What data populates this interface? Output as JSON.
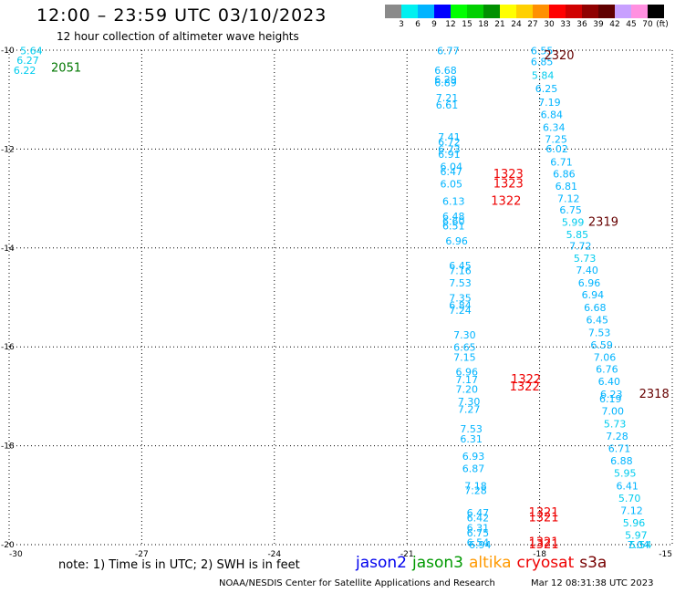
{
  "header": {
    "title": "12:00 – 23:59 UTC 03/10/2023",
    "subtitle": "12 hour collection of altimeter wave heights"
  },
  "color_scale": {
    "labels": [
      "3",
      "6",
      "9",
      "12",
      "15",
      "18",
      "21",
      "24",
      "27",
      "30",
      "33",
      "36",
      "39",
      "42",
      "45",
      "70"
    ],
    "unit": "(ft)",
    "colors": [
      "#8a8a8a",
      "#00f0f0",
      "#00b4ff",
      "#0000ff",
      "#00ff00",
      "#00d000",
      "#009000",
      "#ffff00",
      "#ffd000",
      "#ff9000",
      "#ff0000",
      "#d00000",
      "#900000",
      "#600000",
      "#c8a0ff",
      "#ff90e0",
      "#000000"
    ]
  },
  "map": {
    "x_ticks": [
      -30,
      -27,
      -24,
      -21,
      -18,
      -15
    ],
    "y_ticks": [
      -10,
      -12,
      -14,
      -16,
      -18,
      -20
    ],
    "xlim": [
      -30,
      -15
    ],
    "ylim": [
      -20,
      -10
    ],
    "grid": true
  },
  "chart_data": {
    "type": "scatter",
    "points": [
      {
        "x": -29.75,
        "y": -10.08,
        "text": "5.64",
        "color": "#00ccee"
      },
      {
        "x": -29.83,
        "y": -10.28,
        "text": "6.27",
        "color": "#00ccee"
      },
      {
        "x": -29.9,
        "y": -10.48,
        "text": "6.22",
        "color": "#00ccee"
      },
      {
        "x": -20.32,
        "y": -10.08,
        "text": "6.77",
        "color": "#00b4ff"
      },
      {
        "x": -18.2,
        "y": -10.08,
        "text": "6.55",
        "color": "#00b4ff"
      },
      {
        "x": -18.2,
        "y": -10.3,
        "text": "6.85",
        "color": "#00b4ff"
      },
      {
        "x": -18.18,
        "y": -10.58,
        "text": "5.84",
        "color": "#00ccee"
      },
      {
        "x": -18.1,
        "y": -10.85,
        "text": "6.25",
        "color": "#00b4ff"
      },
      {
        "x": -18.03,
        "y": -11.13,
        "text": "7.19",
        "color": "#00b4ff"
      },
      {
        "x": -17.98,
        "y": -11.37,
        "text": "6.84",
        "color": "#00b4ff"
      },
      {
        "x": -17.93,
        "y": -11.63,
        "text": "6.34",
        "color": "#00b4ff"
      },
      {
        "x": -17.88,
        "y": -11.87,
        "text": "7.25",
        "color": "#00b4ff"
      },
      {
        "x": -17.86,
        "y": -12.07,
        "text": "6.02",
        "color": "#00b4ff"
      },
      {
        "x": -17.76,
        "y": -12.33,
        "text": "6.71",
        "color": "#00b4ff"
      },
      {
        "x": -17.7,
        "y": -12.57,
        "text": "6.86",
        "color": "#00b4ff"
      },
      {
        "x": -17.65,
        "y": -12.82,
        "text": "6.81",
        "color": "#00b4ff"
      },
      {
        "x": -17.6,
        "y": -13.07,
        "text": "7.12",
        "color": "#00b4ff"
      },
      {
        "x": -17.55,
        "y": -13.3,
        "text": "6.75",
        "color": "#00b4ff"
      },
      {
        "x": -17.5,
        "y": -13.55,
        "text": "5.99",
        "color": "#00ccee"
      },
      {
        "x": -17.4,
        "y": -13.8,
        "text": "5.85",
        "color": "#00ccee"
      },
      {
        "x": -17.33,
        "y": -14.03,
        "text": "7.72",
        "color": "#00b4ff"
      },
      {
        "x": -17.23,
        "y": -14.28,
        "text": "5.73",
        "color": "#00ccee"
      },
      {
        "x": -17.18,
        "y": -14.52,
        "text": "7.40",
        "color": "#00b4ff"
      },
      {
        "x": -17.13,
        "y": -14.78,
        "text": "6.96",
        "color": "#00b4ff"
      },
      {
        "x": -17.05,
        "y": -15.02,
        "text": "6.94",
        "color": "#00b4ff"
      },
      {
        "x": -17.0,
        "y": -15.28,
        "text": "6.68",
        "color": "#00b4ff"
      },
      {
        "x": -16.95,
        "y": -15.53,
        "text": "6.45",
        "color": "#00b4ff"
      },
      {
        "x": -16.9,
        "y": -15.78,
        "text": "7.53",
        "color": "#00b4ff"
      },
      {
        "x": -16.85,
        "y": -16.03,
        "text": "6.59",
        "color": "#00b4ff"
      },
      {
        "x": -16.78,
        "y": -16.28,
        "text": "7.06",
        "color": "#00b4ff"
      },
      {
        "x": -16.73,
        "y": -16.52,
        "text": "6.76",
        "color": "#00b4ff"
      },
      {
        "x": -16.68,
        "y": -16.77,
        "text": "6.40",
        "color": "#00b4ff"
      },
      {
        "x": -16.63,
        "y": -17.03,
        "text": "6.23",
        "color": "#00b4ff"
      },
      {
        "x": -16.65,
        "y": -17.12,
        "text": "6.19",
        "color": "#00b4ff"
      },
      {
        "x": -16.6,
        "y": -17.37,
        "text": "7.00",
        "color": "#00b4ff"
      },
      {
        "x": -16.55,
        "y": -17.63,
        "text": "5.73",
        "color": "#00ccee"
      },
      {
        "x": -16.5,
        "y": -17.88,
        "text": "7.28",
        "color": "#00b4ff"
      },
      {
        "x": -16.45,
        "y": -18.13,
        "text": "6.71",
        "color": "#00b4ff"
      },
      {
        "x": -16.4,
        "y": -18.38,
        "text": "6.88",
        "color": "#00b4ff"
      },
      {
        "x": -16.32,
        "y": -18.63,
        "text": "5.95",
        "color": "#00ccee"
      },
      {
        "x": -16.27,
        "y": -18.88,
        "text": "6.41",
        "color": "#00b4ff"
      },
      {
        "x": -16.22,
        "y": -19.13,
        "text": "5.70",
        "color": "#00ccee"
      },
      {
        "x": -16.17,
        "y": -19.38,
        "text": "7.12",
        "color": "#00b4ff"
      },
      {
        "x": -16.12,
        "y": -19.63,
        "text": "5.96",
        "color": "#00ccee"
      },
      {
        "x": -16.07,
        "y": -19.88,
        "text": "5.97",
        "color": "#00ccee"
      },
      {
        "x": -16.02,
        "y": -20.13,
        "text": "7.04",
        "color": "#00b4ff"
      },
      {
        "x": -15.97,
        "y": -20.38,
        "text": "5.54",
        "color": "#00ccee"
      },
      {
        "x": -20.38,
        "y": -10.48,
        "text": "6.68",
        "color": "#00b4ff"
      },
      {
        "x": -20.38,
        "y": -10.66,
        "text": "6.29",
        "color": "#00b4ff"
      },
      {
        "x": -20.38,
        "y": -10.73,
        "text": "6.89",
        "color": "#00b4ff"
      },
      {
        "x": -20.35,
        "y": -11.03,
        "text": "7.21",
        "color": "#00b4ff"
      },
      {
        "x": -20.35,
        "y": -11.18,
        "text": "6.61",
        "color": "#00b4ff"
      },
      {
        "x": -20.3,
        "y": -11.83,
        "text": "7.41",
        "color": "#00b4ff"
      },
      {
        "x": -20.3,
        "y": -11.93,
        "text": "6.72",
        "color": "#00b4ff"
      },
      {
        "x": -20.3,
        "y": -12.08,
        "text": "6.73",
        "color": "#00b4ff"
      },
      {
        "x": -20.3,
        "y": -12.18,
        "text": "6.91",
        "color": "#00b4ff"
      },
      {
        "x": -20.25,
        "y": -12.43,
        "text": "6.04",
        "color": "#00b4ff"
      },
      {
        "x": -20.25,
        "y": -12.53,
        "text": "6.47",
        "color": "#00b4ff"
      },
      {
        "x": -20.25,
        "y": -12.78,
        "text": "6.05",
        "color": "#00b4ff"
      },
      {
        "x": -20.2,
        "y": -13.13,
        "text": "6.13",
        "color": "#00b4ff"
      },
      {
        "x": -20.2,
        "y": -13.43,
        "text": "6.48",
        "color": "#00b4ff"
      },
      {
        "x": -20.2,
        "y": -13.53,
        "text": "6.60",
        "color": "#00b4ff"
      },
      {
        "x": -20.2,
        "y": -13.63,
        "text": "6.51",
        "color": "#00b4ff"
      },
      {
        "x": -20.13,
        "y": -13.93,
        "text": "6.96",
        "color": "#00b4ff"
      },
      {
        "x": -20.05,
        "y": -14.43,
        "text": "6.45",
        "color": "#00b4ff"
      },
      {
        "x": -20.05,
        "y": -14.53,
        "text": "7.16",
        "color": "#00b4ff"
      },
      {
        "x": -20.05,
        "y": -14.78,
        "text": "7.53",
        "color": "#00b4ff"
      },
      {
        "x": -20.05,
        "y": -15.08,
        "text": "7.35",
        "color": "#00b4ff"
      },
      {
        "x": -20.05,
        "y": -15.23,
        "text": "6.84",
        "color": "#00b4ff"
      },
      {
        "x": -20.05,
        "y": -15.33,
        "text": "7.24",
        "color": "#00b4ff"
      },
      {
        "x": -19.95,
        "y": -15.83,
        "text": "7.30",
        "color": "#00b4ff"
      },
      {
        "x": -19.95,
        "y": -16.08,
        "text": "6.65",
        "color": "#00b4ff"
      },
      {
        "x": -19.95,
        "y": -16.28,
        "text": "7.15",
        "color": "#00b4ff"
      },
      {
        "x": -19.9,
        "y": -16.58,
        "text": "6.96",
        "color": "#00b4ff"
      },
      {
        "x": -19.9,
        "y": -16.73,
        "text": "7.17",
        "color": "#00b4ff"
      },
      {
        "x": -19.9,
        "y": -16.93,
        "text": "7.20",
        "color": "#00b4ff"
      },
      {
        "x": -19.85,
        "y": -17.18,
        "text": "7.30",
        "color": "#00b4ff"
      },
      {
        "x": -19.85,
        "y": -17.33,
        "text": "7.27",
        "color": "#00b4ff"
      },
      {
        "x": -19.8,
        "y": -17.73,
        "text": "7.53",
        "color": "#00b4ff"
      },
      {
        "x": -19.8,
        "y": -17.93,
        "text": "6.31",
        "color": "#00b4ff"
      },
      {
        "x": -19.75,
        "y": -18.28,
        "text": "6.93",
        "color": "#00b4ff"
      },
      {
        "x": -19.75,
        "y": -18.53,
        "text": "6.87",
        "color": "#00b4ff"
      },
      {
        "x": -19.7,
        "y": -18.88,
        "text": "7.18",
        "color": "#00b4ff"
      },
      {
        "x": -19.7,
        "y": -18.98,
        "text": "7.28",
        "color": "#00b4ff"
      },
      {
        "x": -19.65,
        "y": -19.43,
        "text": "6.47",
        "color": "#00b4ff"
      },
      {
        "x": -19.65,
        "y": -19.53,
        "text": "6.42",
        "color": "#00b4ff"
      },
      {
        "x": -19.65,
        "y": -19.73,
        "text": "6.31",
        "color": "#00b4ff"
      },
      {
        "x": -19.65,
        "y": -19.83,
        "text": "6.75",
        "color": "#00b4ff"
      },
      {
        "x": -19.65,
        "y": -20.03,
        "text": "6.54",
        "color": "#00b4ff"
      },
      {
        "x": -19.6,
        "y": -20.43,
        "text": "6.94",
        "color": "#00b4ff"
      }
    ],
    "pass_labels": [
      {
        "x": -29.05,
        "y": -10.43,
        "text": "2051",
        "color": "#007700"
      },
      {
        "x": -17.9,
        "y": -10.18,
        "text": "2320",
        "color": "#660000"
      },
      {
        "x": -16.9,
        "y": -13.55,
        "text": "2319",
        "color": "#660000"
      },
      {
        "x": -15.75,
        "y": -17.03,
        "text": "2318",
        "color": "#660000"
      },
      {
        "x": -19.05,
        "y": -12.58,
        "text": "1323",
        "color": "#ee0000"
      },
      {
        "x": -19.05,
        "y": -12.78,
        "text": "1323",
        "color": "#ee0000"
      },
      {
        "x": -19.1,
        "y": -13.13,
        "text": "1322",
        "color": "#ee0000"
      },
      {
        "x": -18.65,
        "y": -16.73,
        "text": "1322",
        "color": "#ee0000"
      },
      {
        "x": -18.68,
        "y": -16.88,
        "text": "1322",
        "color": "#ee0000"
      },
      {
        "x": -18.25,
        "y": -19.43,
        "text": "1321",
        "color": "#ee0000"
      },
      {
        "x": -18.25,
        "y": -19.53,
        "text": "1321",
        "color": "#ee0000"
      },
      {
        "x": -18.25,
        "y": -20.03,
        "text": "1321",
        "color": "#ee0000"
      },
      {
        "x": -18.25,
        "y": -20.43,
        "text": "1321",
        "color": "#ee0000"
      }
    ]
  },
  "note": "note: 1) Time is in UTC; 2) SWH is in feet",
  "legend": [
    {
      "name": "jason2",
      "color": "#0000ee"
    },
    {
      "name": "jason3",
      "color": "#009900"
    },
    {
      "name": "altika",
      "color": "#ff9900"
    },
    {
      "name": "cryosat",
      "color": "#ee0000"
    },
    {
      "name": "s3a",
      "color": "#770000"
    }
  ],
  "footer": {
    "left": "NOAA/NESDIS Center for Satellite Applications and Research",
    "right": "Mar 12 08:31:38 UTC 2023"
  }
}
